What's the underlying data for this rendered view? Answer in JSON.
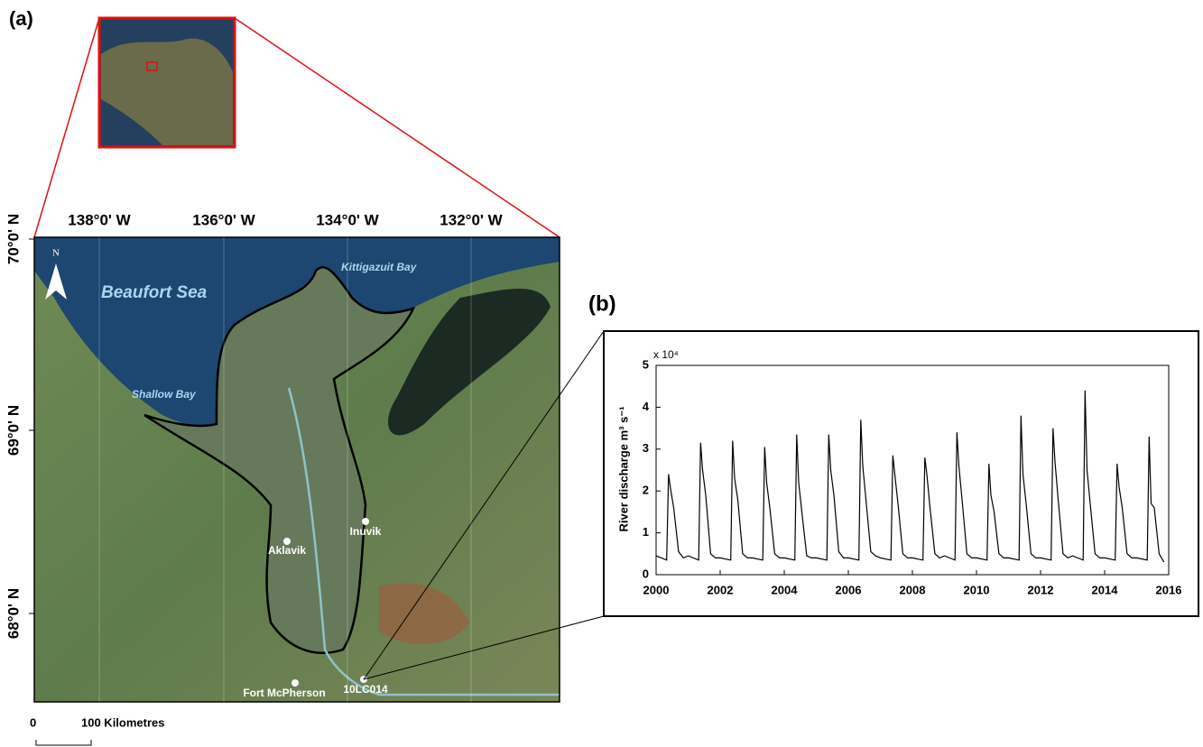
{
  "map": {
    "panel_label": "(a)",
    "north": "N",
    "longitudes": [
      "138°0' W",
      "136°0' W",
      "134°0' W",
      "132°0' W"
    ],
    "latitudes": [
      "70°0' N",
      "69°0' N",
      "68°0' N"
    ],
    "places": {
      "sea": "Beaufort Sea",
      "bay1": "Kittigazuit Bay",
      "bay2": "Shallow Bay",
      "town1": "Aklavik",
      "town2": "Inuvik",
      "town3": "Fort McPherson",
      "station": "10LC014"
    },
    "scale": {
      "start": "0",
      "end": "100 Kilometres"
    }
  },
  "chart_data": {
    "type": "line",
    "panel_label": "(b)",
    "ylabel": "River discharge  m³ s⁻¹",
    "multiplier": "x 10⁴",
    "color": "#000000",
    "xlim": [
      2000,
      2016
    ],
    "xticks": [
      2000,
      2002,
      2004,
      2006,
      2008,
      2010,
      2012,
      2014,
      2016
    ],
    "ylim": [
      0,
      5
    ],
    "yticks": [
      0,
      1,
      2,
      3,
      4,
      5
    ],
    "x": [
      2000,
      2000.33,
      2000.39,
      2000.45,
      2000.55,
      2000.7,
      2000.85,
      2001,
      2001.33,
      2001.39,
      2001.45,
      2001.55,
      2001.7,
      2001.85,
      2002,
      2002.33,
      2002.39,
      2002.45,
      2002.55,
      2002.7,
      2002.85,
      2003,
      2003.33,
      2003.39,
      2003.45,
      2003.55,
      2003.7,
      2003.85,
      2004,
      2004.33,
      2004.39,
      2004.45,
      2004.55,
      2004.7,
      2004.85,
      2005,
      2005.33,
      2005.39,
      2005.45,
      2005.55,
      2005.7,
      2005.85,
      2006,
      2006.33,
      2006.39,
      2006.45,
      2006.55,
      2006.7,
      2006.85,
      2007,
      2007.33,
      2007.39,
      2007.45,
      2007.55,
      2007.7,
      2007.85,
      2008,
      2008.33,
      2008.39,
      2008.45,
      2008.55,
      2008.7,
      2008.85,
      2009,
      2009.33,
      2009.39,
      2009.45,
      2009.55,
      2009.7,
      2009.85,
      2010,
      2010.33,
      2010.39,
      2010.45,
      2010.55,
      2010.7,
      2010.85,
      2011,
      2011.33,
      2011.39,
      2011.45,
      2011.55,
      2011.7,
      2011.85,
      2012,
      2012.33,
      2012.39,
      2012.45,
      2012.55,
      2012.7,
      2012.85,
      2013,
      2013.33,
      2013.39,
      2013.45,
      2013.55,
      2013.7,
      2013.85,
      2014,
      2014.33,
      2014.39,
      2014.45,
      2014.55,
      2014.7,
      2014.85,
      2015,
      2015.33,
      2015.39,
      2015.45,
      2015.55,
      2015.7,
      2015.85
    ],
    "values": [
      0.45,
      0.35,
      2.4,
      2.05,
      1.6,
      0.55,
      0.4,
      0.45,
      0.35,
      3.15,
      2.5,
      1.9,
      0.5,
      0.4,
      0.4,
      0.35,
      3.2,
      2.3,
      1.8,
      0.5,
      0.4,
      0.4,
      0.35,
      3.05,
      2.2,
      1.6,
      0.5,
      0.4,
      0.4,
      0.35,
      3.35,
      2.2,
      1.5,
      0.45,
      0.4,
      0.4,
      0.35,
      3.35,
      2.5,
      1.9,
      0.55,
      0.4,
      0.4,
      0.35,
      3.7,
      2.6,
      1.8,
      0.55,
      0.45,
      0.4,
      0.35,
      2.85,
      2.4,
      1.7,
      0.5,
      0.4,
      0.4,
      0.35,
      2.8,
      2.4,
      1.6,
      0.5,
      0.4,
      0.45,
      0.35,
      3.4,
      2.6,
      1.8,
      0.5,
      0.4,
      0.4,
      0.35,
      2.65,
      1.9,
      1.5,
      0.5,
      0.4,
      0.4,
      0.35,
      3.8,
      2.4,
      1.7,
      0.5,
      0.4,
      0.4,
      0.35,
      3.5,
      2.7,
      1.8,
      0.5,
      0.4,
      0.45,
      0.35,
      4.4,
      2.5,
      1.7,
      0.5,
      0.4,
      0.4,
      0.35,
      2.65,
      2.1,
      1.6,
      0.5,
      0.4,
      0.4,
      0.35,
      3.3,
      1.7,
      1.6,
      0.5,
      0.3
    ]
  }
}
